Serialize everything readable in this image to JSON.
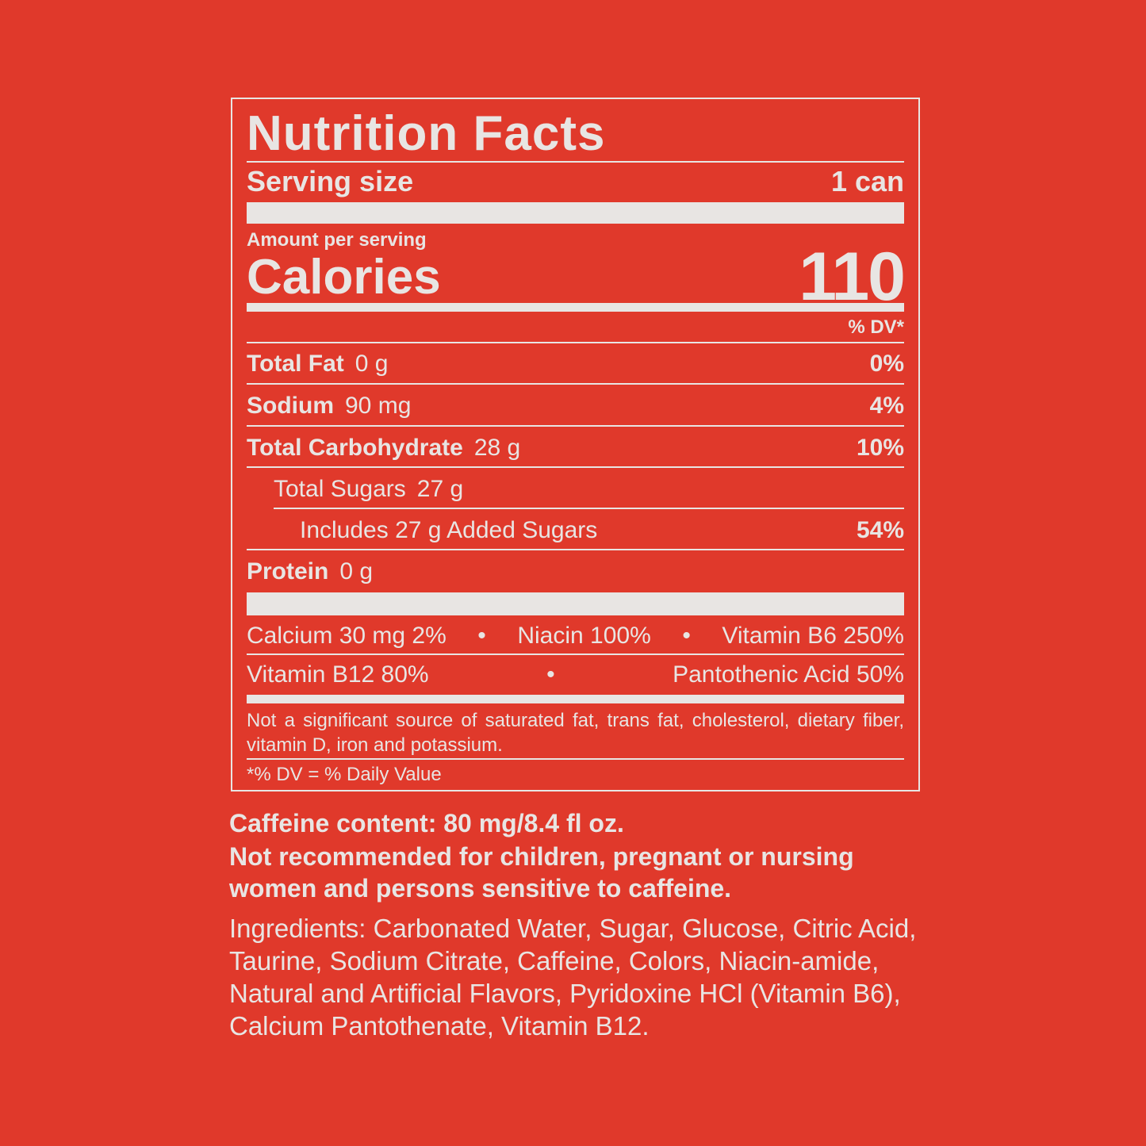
{
  "label": {
    "title": "Nutrition Facts",
    "serving_size_label": "Serving size",
    "serving_size_value": "1 can",
    "amount_per_serving": "Amount per serving",
    "calories_label": "Calories",
    "calories_value": "110",
    "dv_header": "% DV*",
    "nutrients": [
      {
        "name": "Total Fat",
        "amount": "0 g",
        "dv": "0%"
      },
      {
        "name": "Sodium",
        "amount": "90 mg",
        "dv": "4%"
      },
      {
        "name": "Total Carbohydrate",
        "amount": "28 g",
        "dv": "10%"
      },
      {
        "name": "Total Sugars",
        "amount": "27 g",
        "dv": ""
      },
      {
        "name": "Includes 27 g Added Sugars",
        "amount": "",
        "dv": "54%"
      },
      {
        "name": "Protein",
        "amount": "0 g",
        "dv": ""
      }
    ],
    "vitamins_row1": [
      "Calcium 30 mg 2%",
      "•",
      "Niacin 100%",
      "•",
      "Vitamin B6 250%"
    ],
    "vitamins_row2": [
      "Vitamin B12 80%",
      "•",
      "Pantothenic Acid 50%"
    ],
    "footnote": "Not a significant source of saturated fat, trans fat, cholesterol, dietary fiber, vitamin D, iron and potassium.",
    "dv_note": "*% DV = % Daily Value"
  },
  "caffeine": "Caffeine content: 80 mg/8.4 fl oz.",
  "warning": "Not recommended for children, pregnant or nursing women and persons sensitive to caffeine.",
  "ingredients": "Ingredients: Carbonated Water, Sugar, Glucose, Citric Acid, Taurine, Sodium Citrate, Caffeine, Colors, Niacin-amide, Natural and Artificial Flavors, Pyridoxine HCl (Vitamin B6), Calcium Pantothenate, Vitamin B12.",
  "colors": {
    "background": "#e0392b",
    "text": "#e8e5e3"
  }
}
